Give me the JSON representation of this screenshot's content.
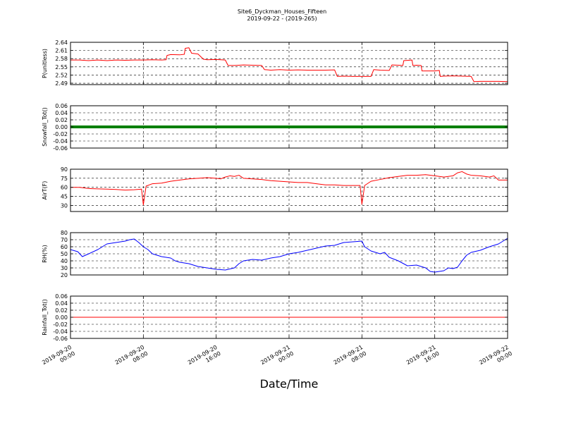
{
  "figure": {
    "title_line1": "Site6_Dyckman_Houses_Fifteen",
    "title_line2": "2019-09-22 - (2019-265)",
    "xlabel": "Date/Time"
  },
  "chart_data": {
    "type": "line",
    "x_range": [
      "2019-09-20 00:00",
      "2019-09-22 00:00"
    ],
    "x_ticks": [
      {
        "line1": "2019-09-20",
        "line2": "00:00",
        "t": 0
      },
      {
        "line1": "2019-09-20",
        "line2": "08:00",
        "t": 8
      },
      {
        "line1": "2019-09-20",
        "line2": "16:00",
        "t": 16
      },
      {
        "line1": "2019-09-21",
        "line2": "00:00",
        "t": 24
      },
      {
        "line1": "2019-09-21",
        "line2": "08:00",
        "t": 32
      },
      {
        "line1": "2019-09-21",
        "line2": "16:00",
        "t": 40
      },
      {
        "line1": "2019-09-22",
        "line2": "00:00",
        "t": 48
      }
    ],
    "grid": true,
    "panels": [
      {
        "name": "pressure",
        "ylabel": "P(unitless)",
        "ylim": [
          2.485,
          2.64
        ],
        "yticks": [
          "2.64",
          "2.61",
          "2.58",
          "2.55",
          "2.52",
          "2.49"
        ],
        "ytick_values": [
          2.64,
          2.61,
          2.58,
          2.55,
          2.52,
          2.49
        ],
        "color": "#ff0000",
        "style": "line",
        "points": [
          [
            0,
            2.575
          ],
          [
            1,
            2.575
          ],
          [
            2,
            2.573
          ],
          [
            3,
            2.575
          ],
          [
            4,
            2.573
          ],
          [
            5,
            2.575
          ],
          [
            6,
            2.574
          ],
          [
            7,
            2.575
          ],
          [
            8,
            2.575
          ],
          [
            9,
            2.576
          ],
          [
            10,
            2.575
          ],
          [
            10.5,
            2.576
          ],
          [
            10.6,
            2.592
          ],
          [
            11,
            2.595
          ],
          [
            12,
            2.594
          ],
          [
            12.5,
            2.596
          ],
          [
            12.6,
            2.618
          ],
          [
            13,
            2.62
          ],
          [
            13.3,
            2.6
          ],
          [
            14,
            2.597
          ],
          [
            14.6,
            2.578
          ],
          [
            15,
            2.576
          ],
          [
            16,
            2.577
          ],
          [
            17,
            2.575
          ],
          [
            17.3,
            2.555
          ],
          [
            18,
            2.555
          ],
          [
            19,
            2.557
          ],
          [
            20,
            2.556
          ],
          [
            21,
            2.555
          ],
          [
            21.3,
            2.54
          ],
          [
            22,
            2.538
          ],
          [
            23,
            2.54
          ],
          [
            24,
            2.538
          ],
          [
            25,
            2.539
          ],
          [
            26,
            2.538
          ],
          [
            27,
            2.538
          ],
          [
            28,
            2.538
          ],
          [
            29,
            2.539
          ],
          [
            29.3,
            2.515
          ],
          [
            30,
            2.516
          ],
          [
            31,
            2.515
          ],
          [
            32,
            2.515
          ],
          [
            33,
            2.515
          ],
          [
            33.3,
            2.54
          ],
          [
            34,
            2.538
          ],
          [
            35,
            2.537
          ],
          [
            35.3,
            2.557
          ],
          [
            36,
            2.556
          ],
          [
            36.5,
            2.555
          ],
          [
            36.6,
            2.573
          ],
          [
            37.5,
            2.575
          ],
          [
            37.6,
            2.555
          ],
          [
            38,
            2.556
          ],
          [
            38.5,
            2.555
          ],
          [
            38.6,
            2.535
          ],
          [
            39,
            2.535
          ],
          [
            40,
            2.535
          ],
          [
            40.5,
            2.537
          ],
          [
            40.6,
            2.515
          ],
          [
            41,
            2.516
          ],
          [
            42,
            2.517
          ],
          [
            43,
            2.516
          ],
          [
            44,
            2.515
          ],
          [
            44.3,
            2.496
          ],
          [
            45,
            2.497
          ],
          [
            46,
            2.497
          ],
          [
            47,
            2.497
          ],
          [
            48,
            2.496
          ]
        ]
      },
      {
        "name": "snowfall",
        "ylabel": "Snowfall_Tot()",
        "ylim": [
          -0.06,
          0.06
        ],
        "yticks": [
          "0.06",
          "0.04",
          "0.02",
          "0.00",
          "-0.02",
          "-0.04",
          "-0.06"
        ],
        "ytick_values": [
          0.06,
          0.04,
          0.02,
          0.0,
          -0.02,
          -0.04,
          -0.06
        ],
        "color": "#008000",
        "style": "thick",
        "points": [
          [
            0,
            0
          ],
          [
            48,
            0
          ]
        ]
      },
      {
        "name": "airtemp",
        "ylabel": "AirT(F)",
        "ylim": [
          20,
          90
        ],
        "yticks": [
          "90",
          "75",
          "60",
          "45",
          "30"
        ],
        "ytick_values": [
          90,
          75,
          60,
          45,
          30
        ],
        "color": "#ff0000",
        "style": "line",
        "points": [
          [
            0,
            60
          ],
          [
            1,
            60
          ],
          [
            2,
            58
          ],
          [
            3,
            57.5
          ],
          [
            4,
            57
          ],
          [
            5,
            56.5
          ],
          [
            6,
            55.5
          ],
          [
            7,
            56
          ],
          [
            7.8,
            57
          ],
          [
            8,
            31
          ],
          [
            8.3,
            62
          ],
          [
            9,
            66
          ],
          [
            10,
            67
          ],
          [
            11,
            70
          ],
          [
            12,
            72
          ],
          [
            13,
            74
          ],
          [
            14,
            75
          ],
          [
            15,
            76
          ],
          [
            16,
            75
          ],
          [
            16.5,
            74
          ],
          [
            17,
            77
          ],
          [
            17.5,
            79
          ],
          [
            18,
            78
          ],
          [
            18.5,
            80
          ],
          [
            19,
            75
          ],
          [
            20,
            74
          ],
          [
            21,
            73
          ],
          [
            22,
            71
          ],
          [
            23,
            70
          ],
          [
            24,
            69
          ],
          [
            25,
            68
          ],
          [
            26,
            68
          ],
          [
            27,
            66
          ],
          [
            28,
            64
          ],
          [
            29,
            64
          ],
          [
            30,
            63
          ],
          [
            31.8,
            63
          ],
          [
            32,
            32
          ],
          [
            32.3,
            63
          ],
          [
            33,
            70
          ],
          [
            34,
            73
          ],
          [
            35,
            76
          ],
          [
            36,
            78
          ],
          [
            37,
            80
          ],
          [
            38,
            80
          ],
          [
            39,
            81
          ],
          [
            40,
            79
          ],
          [
            41,
            77
          ],
          [
            42,
            79
          ],
          [
            42.5,
            84
          ],
          [
            43,
            86
          ],
          [
            43.5,
            82
          ],
          [
            44,
            80
          ],
          [
            45,
            79
          ],
          [
            46,
            77
          ],
          [
            46.5,
            79
          ],
          [
            47,
            72
          ],
          [
            48,
            72
          ]
        ]
      },
      {
        "name": "rh",
        "ylabel": "RH(%)",
        "ylim": [
          20,
          80
        ],
        "yticks": [
          "80",
          "70",
          "60",
          "50",
          "40",
          "30",
          "20"
        ],
        "ytick_values": [
          80,
          70,
          60,
          50,
          40,
          30,
          20
        ],
        "color": "#0000ff",
        "style": "line",
        "points": [
          [
            0,
            56
          ],
          [
            0.8,
            53
          ],
          [
            1.3,
            46
          ],
          [
            2,
            50
          ],
          [
            3,
            56
          ],
          [
            3.5,
            60
          ],
          [
            4,
            64
          ],
          [
            5,
            66
          ],
          [
            6,
            68
          ],
          [
            6.5,
            70
          ],
          [
            7,
            71
          ],
          [
            7.5,
            66
          ],
          [
            8,
            60
          ],
          [
            8.5,
            56
          ],
          [
            9,
            50
          ],
          [
            10,
            46
          ],
          [
            11,
            44
          ],
          [
            11.5,
            40
          ],
          [
            12,
            38
          ],
          [
            13,
            36
          ],
          [
            14,
            32
          ],
          [
            15,
            30
          ],
          [
            16,
            28
          ],
          [
            17,
            27
          ],
          [
            18,
            30
          ],
          [
            18.5,
            36
          ],
          [
            19,
            40
          ],
          [
            20,
            42
          ],
          [
            21,
            41
          ],
          [
            22,
            44
          ],
          [
            23,
            46
          ],
          [
            24,
            50
          ],
          [
            25,
            52
          ],
          [
            26,
            55
          ],
          [
            27,
            58
          ],
          [
            28,
            61
          ],
          [
            29,
            62
          ],
          [
            30,
            66
          ],
          [
            31,
            67
          ],
          [
            32,
            68
          ],
          [
            32.3,
            60
          ],
          [
            33,
            54
          ],
          [
            34,
            50
          ],
          [
            34.5,
            52
          ],
          [
            35,
            45
          ],
          [
            36,
            40
          ],
          [
            37,
            33
          ],
          [
            38,
            34
          ],
          [
            39,
            30
          ],
          [
            39.5,
            25
          ],
          [
            40,
            24
          ],
          [
            41,
            26
          ],
          [
            41.5,
            30
          ],
          [
            42,
            29
          ],
          [
            42.5,
            31
          ],
          [
            43,
            40
          ],
          [
            43.5,
            48
          ],
          [
            44,
            52
          ],
          [
            45,
            55
          ],
          [
            46,
            60
          ],
          [
            47,
            64
          ],
          [
            48,
            72
          ]
        ]
      },
      {
        "name": "rainfall",
        "ylabel": "Rainfall_Tot()",
        "ylim": [
          -0.06,
          0.06
        ],
        "yticks": [
          "0.06",
          "0.04",
          "0.02",
          "0.00",
          "-0.02",
          "-0.04",
          "-0.06"
        ],
        "ytick_values": [
          0.06,
          0.04,
          0.02,
          0.0,
          -0.02,
          -0.04,
          -0.06
        ],
        "color": "#ff0000",
        "style": "line",
        "points": [
          [
            0,
            0
          ],
          [
            48,
            0
          ]
        ]
      }
    ]
  }
}
